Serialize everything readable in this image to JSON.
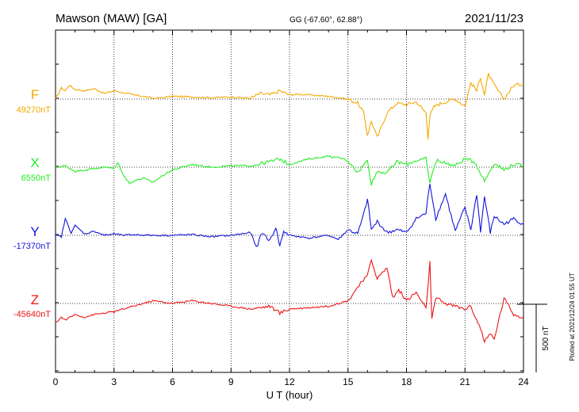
{
  "chart_data": {
    "type": "line",
    "station": "Mawson (MAW)  [GA]",
    "coords": "GG (-67.60°,  62.88°)",
    "date": "2021/11/23",
    "xlabel": "U T (hour)",
    "xlim": [
      0,
      24
    ],
    "x_ticks": [
      "0",
      "3",
      "6",
      "9",
      "12",
      "15",
      "18",
      "21",
      "24"
    ],
    "grid": true,
    "scale_label": "500 nT",
    "scale_nT": 500,
    "plotted_note": "Plotted at 2021/12/24 01:55 UT",
    "series": [
      {
        "name": "F",
        "baseline_label": "49270nT",
        "baseline_nT": 49270,
        "color": "#f5a800",
        "hours": [
          0,
          0.3,
          0.5,
          0.7,
          1,
          1.5,
          2,
          2.5,
          3,
          3.5,
          4,
          4.5,
          5,
          5.5,
          6,
          7,
          8,
          9,
          10,
          10.5,
          11,
          11.5,
          12,
          12.5,
          13,
          14,
          14.5,
          15,
          15.5,
          15.8,
          16,
          16.2,
          16.5,
          17,
          17.5,
          18,
          18.5,
          19,
          19.1,
          19.2,
          19.4,
          19.6,
          20,
          20.5,
          21,
          21.3,
          21.6,
          21.8,
          22,
          22.2,
          22.5,
          23,
          23.5,
          24
        ],
        "values": [
          0,
          80,
          60,
          100,
          70,
          60,
          75,
          40,
          60,
          45,
          30,
          20,
          5,
          10,
          20,
          15,
          10,
          15,
          5,
          40,
          30,
          60,
          30,
          35,
          30,
          20,
          10,
          0,
          -30,
          -100,
          -260,
          -160,
          -280,
          -100,
          -30,
          -40,
          -20,
          -100,
          -280,
          -120,
          -60,
          -40,
          -20,
          0,
          -50,
          120,
          60,
          160,
          30,
          180,
          100,
          0,
          100,
          110
        ]
      },
      {
        "name": "X",
        "baseline_label": "6550nT",
        "baseline_nT": 6550,
        "color": "#22ee22",
        "hours": [
          0,
          0.5,
          1,
          1.5,
          2,
          2.5,
          3,
          3.2,
          3.5,
          3.8,
          4,
          4.5,
          5,
          5.5,
          6,
          7,
          8,
          9,
          10,
          11,
          11.5,
          12,
          13,
          14,
          14.8,
          15.2,
          15.5,
          16,
          16.2,
          16.5,
          17,
          17.5,
          18,
          18.5,
          19,
          19.2,
          19.4,
          19.6,
          20,
          20.5,
          21,
          21.5,
          22,
          22.5,
          23,
          23.5,
          24
        ],
        "values": [
          0,
          10,
          -30,
          -20,
          -10,
          0,
          -10,
          30,
          -60,
          -120,
          -100,
          -80,
          -110,
          -60,
          -20,
          20,
          0,
          10,
          10,
          40,
          60,
          20,
          60,
          80,
          60,
          20,
          -40,
          50,
          -120,
          -30,
          -40,
          40,
          20,
          50,
          60,
          -120,
          0,
          50,
          30,
          10,
          60,
          40,
          -100,
          30,
          -20,
          20,
          10
        ]
      },
      {
        "name": "Y",
        "baseline_label": "-17370nT",
        "baseline_nT": -17370,
        "color": "#1515dd",
        "hours": [
          0,
          0.3,
          0.5,
          0.8,
          1,
          1.5,
          2,
          2.5,
          3,
          3.5,
          4,
          5,
          6,
          7,
          8,
          9,
          10,
          10.3,
          10.6,
          11,
          11.3,
          11.5,
          11.7,
          12,
          13,
          14,
          14.5,
          15,
          15.5,
          15.8,
          16,
          16.2,
          16.5,
          17,
          17.5,
          18,
          18.5,
          19,
          19.2,
          19.5,
          20,
          20.5,
          21,
          21.3,
          21.6,
          21.8,
          22,
          22.3,
          22.5,
          23,
          23.5,
          24
        ],
        "values": [
          0,
          -10,
          120,
          20,
          70,
          10,
          30,
          0,
          10,
          0,
          5,
          0,
          0,
          5,
          -10,
          0,
          20,
          -90,
          20,
          -40,
          60,
          -80,
          30,
          0,
          -20,
          0,
          -30,
          40,
          10,
          150,
          260,
          40,
          100,
          20,
          40,
          20,
          120,
          160,
          380,
          120,
          300,
          30,
          200,
          40,
          300,
          30,
          280,
          20,
          140,
          80,
          120,
          80
        ]
      },
      {
        "name": "Z",
        "baseline_label": "-45640nT",
        "baseline_nT": -45640,
        "color": "#ee1515",
        "hours": [
          0,
          0.3,
          0.5,
          1,
          1.5,
          2,
          3,
          4,
          5,
          6,
          7,
          8,
          9,
          10,
          11,
          11.5,
          12,
          13,
          14,
          14.5,
          15,
          15.5,
          16,
          16.2,
          16.5,
          17,
          17.3,
          17.6,
          18,
          18.5,
          19,
          19.2,
          19.3,
          19.5,
          20,
          20.5,
          21,
          21.3,
          21.6,
          21.8,
          22,
          22.3,
          22.5,
          23,
          23.5,
          24
        ],
        "values": [
          -140,
          -100,
          -120,
          -80,
          -100,
          -80,
          -60,
          -20,
          20,
          0,
          20,
          0,
          -20,
          -40,
          -20,
          -70,
          -40,
          -30,
          -20,
          0,
          20,
          120,
          200,
          320,
          180,
          260,
          40,
          100,
          20,
          80,
          -40,
          300,
          -120,
          40,
          0,
          -20,
          -40,
          -20,
          -120,
          -180,
          -280,
          -220,
          -260,
          40,
          -80,
          -100
        ]
      }
    ]
  }
}
